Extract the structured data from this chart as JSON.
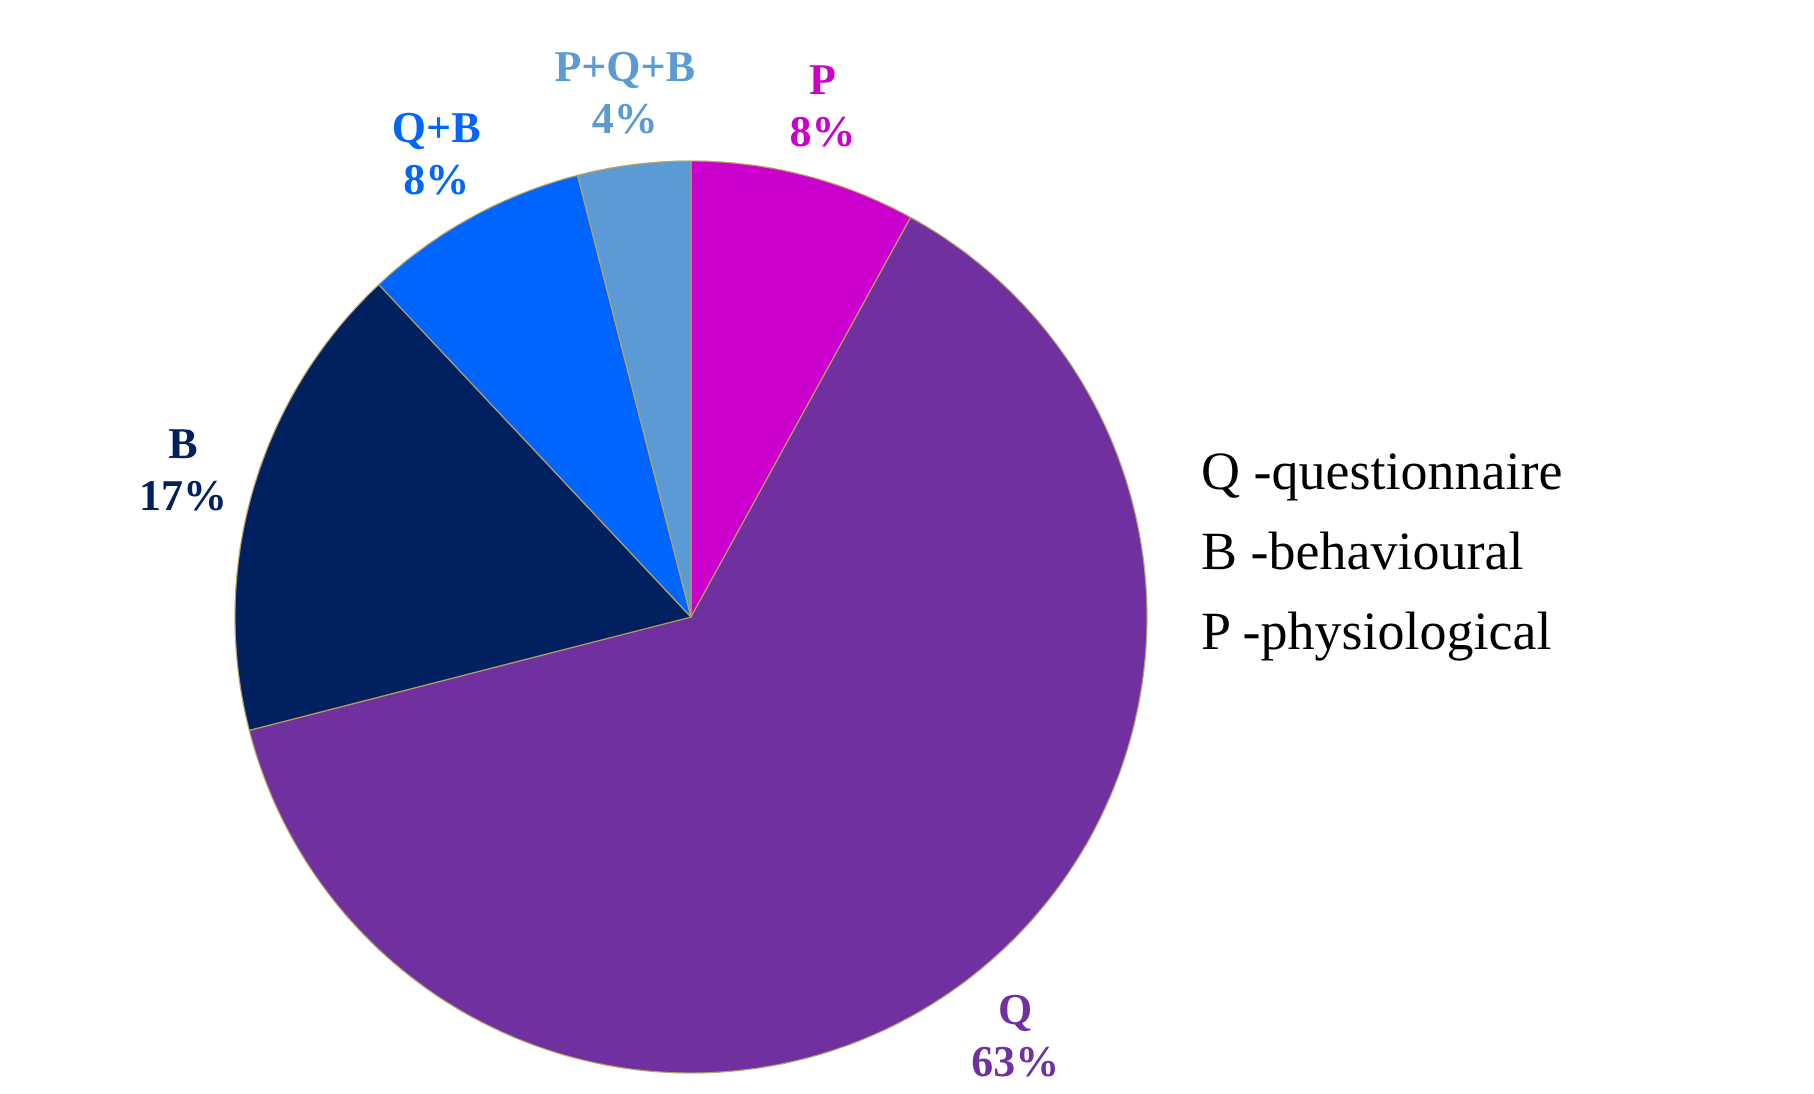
{
  "chart_data": {
    "type": "pie",
    "categories": [
      "P",
      "Q",
      "B",
      "Q+B",
      "P+Q+B"
    ],
    "values": [
      8,
      63,
      17,
      8,
      4
    ],
    "colors": [
      "#cc00cc",
      "#7030a0",
      "#002060",
      "#0066ff",
      "#5b9bd5"
    ],
    "value_labels": [
      "8%",
      "63%",
      "17%",
      "8%",
      "4%"
    ],
    "annotations": [
      "Q -questionnaire",
      "B -behavioural",
      "P -physiological"
    ]
  }
}
